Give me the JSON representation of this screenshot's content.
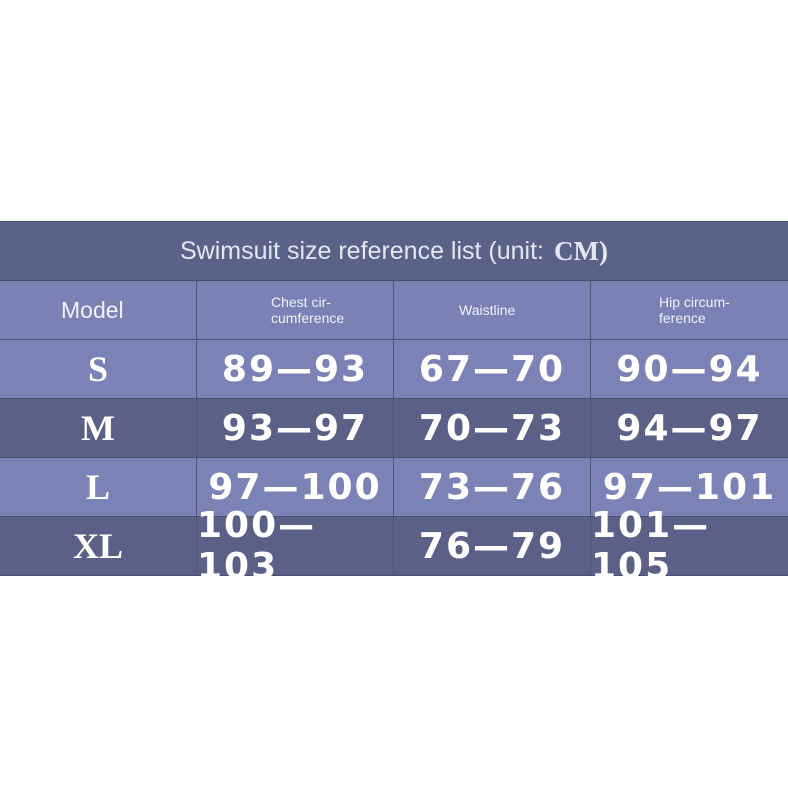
{
  "table": {
    "title": "Swimsuit size reference list (unit:",
    "unit": "CM)",
    "header": [
      "Model",
      "Chest cir-\ncumference",
      "Waistline",
      "Hip circum-\nference"
    ],
    "rows": [
      [
        "S",
        "89—93",
        "67—70",
        "90—94"
      ],
      [
        "M",
        "93—97",
        "70—73",
        "94—97"
      ],
      [
        "L",
        "97—100",
        "73—76",
        "97—101"
      ],
      [
        "XL",
        "100—103",
        "76—79",
        "101—105"
      ]
    ]
  }
}
